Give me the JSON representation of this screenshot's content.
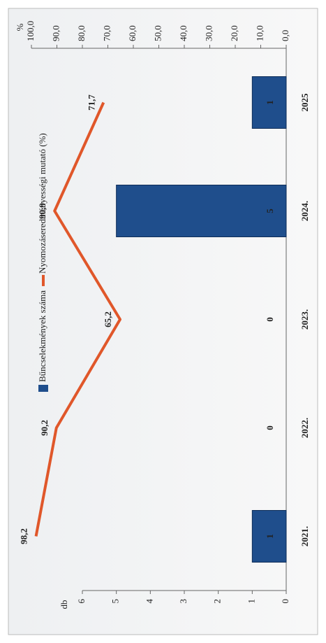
{
  "chart_data": {
    "type": "bar-line",
    "categories": [
      "2021.",
      "2022.",
      "2023.",
      "2024.",
      "2025"
    ],
    "series": [
      {
        "name": "Bűncselekmények száma",
        "color": "#1f4e8c",
        "type": "bar",
        "values": [
          1,
          0,
          0,
          5,
          1
        ]
      },
      {
        "name": "Nyomozáseredményességi mutató (%)",
        "color": "#e0572a",
        "type": "line",
        "axis": "y2",
        "values": [
          98.2,
          90.2,
          65.2,
          90.9,
          71.7
        ],
        "value_labels": [
          "98,2",
          "90,2",
          "65,2",
          "90,9",
          "71,7"
        ]
      }
    ],
    "y_label": "db",
    "y2_label": "%",
    "ylim": [
      0,
      6
    ],
    "yticks": [
      0,
      1,
      2,
      3,
      4,
      5,
      6
    ],
    "y2lim": [
      0,
      100
    ],
    "y2ticks": [
      {
        "value": 0,
        "label": "0,0"
      },
      {
        "value": 10,
        "label": "10,0"
      },
      {
        "value": 20,
        "label": "20,0"
      },
      {
        "value": 30,
        "label": "30,0"
      },
      {
        "value": 40,
        "label": "40,0"
      },
      {
        "value": 50,
        "label": "50,0"
      },
      {
        "value": 60,
        "label": "60,0"
      },
      {
        "value": 70,
        "label": "70,0"
      },
      {
        "value": 80,
        "label": "80,0"
      },
      {
        "value": 90,
        "label": "90,0"
      },
      {
        "value": 100,
        "label": "100,0"
      }
    ]
  }
}
